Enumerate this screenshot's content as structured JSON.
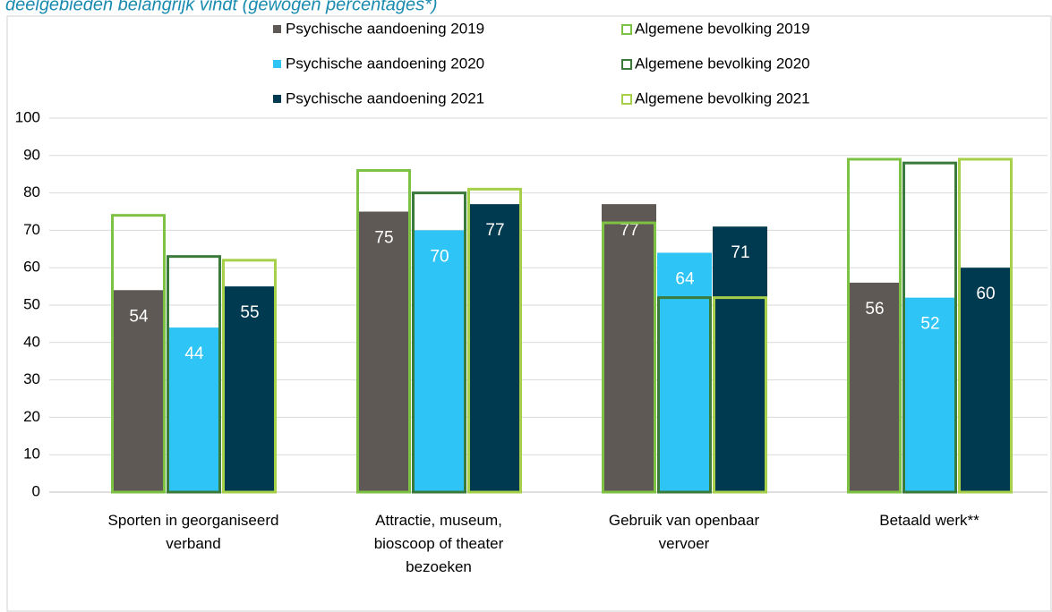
{
  "chart_data": {
    "type": "bar",
    "title": "deelgebieden belangrijk vindt (gewogen percentages*)",
    "categories": [
      "Sporten in georganiseerd verband",
      "Attractie, museum, bioscoop of theater bezoeken",
      "Gebruik van openbaar vervoer",
      "Betaald werk**"
    ],
    "series": [
      {
        "name": "Psychische aandoening 2019",
        "color": "#5f5955",
        "values": [
          54,
          75,
          77,
          56
        ]
      },
      {
        "name": "Psychische aandoening 2020",
        "color": "#2ec4f6",
        "values": [
          44,
          70,
          64,
          52
        ]
      },
      {
        "name": "Psychische aandoening 2021",
        "color": "#003a50",
        "values": [
          55,
          77,
          71,
          60
        ]
      },
      {
        "name": "Algemene bevolking 2019",
        "color": "#7dc242",
        "outline": true,
        "values": [
          74,
          86,
          72,
          89
        ]
      },
      {
        "name": "Algemene bevolking 2020",
        "color": "#3a7a3a",
        "outline": true,
        "values": [
          63,
          80,
          52,
          88
        ]
      },
      {
        "name": "Algemene bevolking 2021",
        "color": "#a6cf4a",
        "outline": true,
        "values": [
          62,
          81,
          52,
          89
        ]
      }
    ],
    "ylim": [
      0,
      100
    ],
    "yticks": [
      0,
      10,
      20,
      30,
      40,
      50,
      60,
      70,
      80,
      90,
      100
    ],
    "grid": true
  }
}
